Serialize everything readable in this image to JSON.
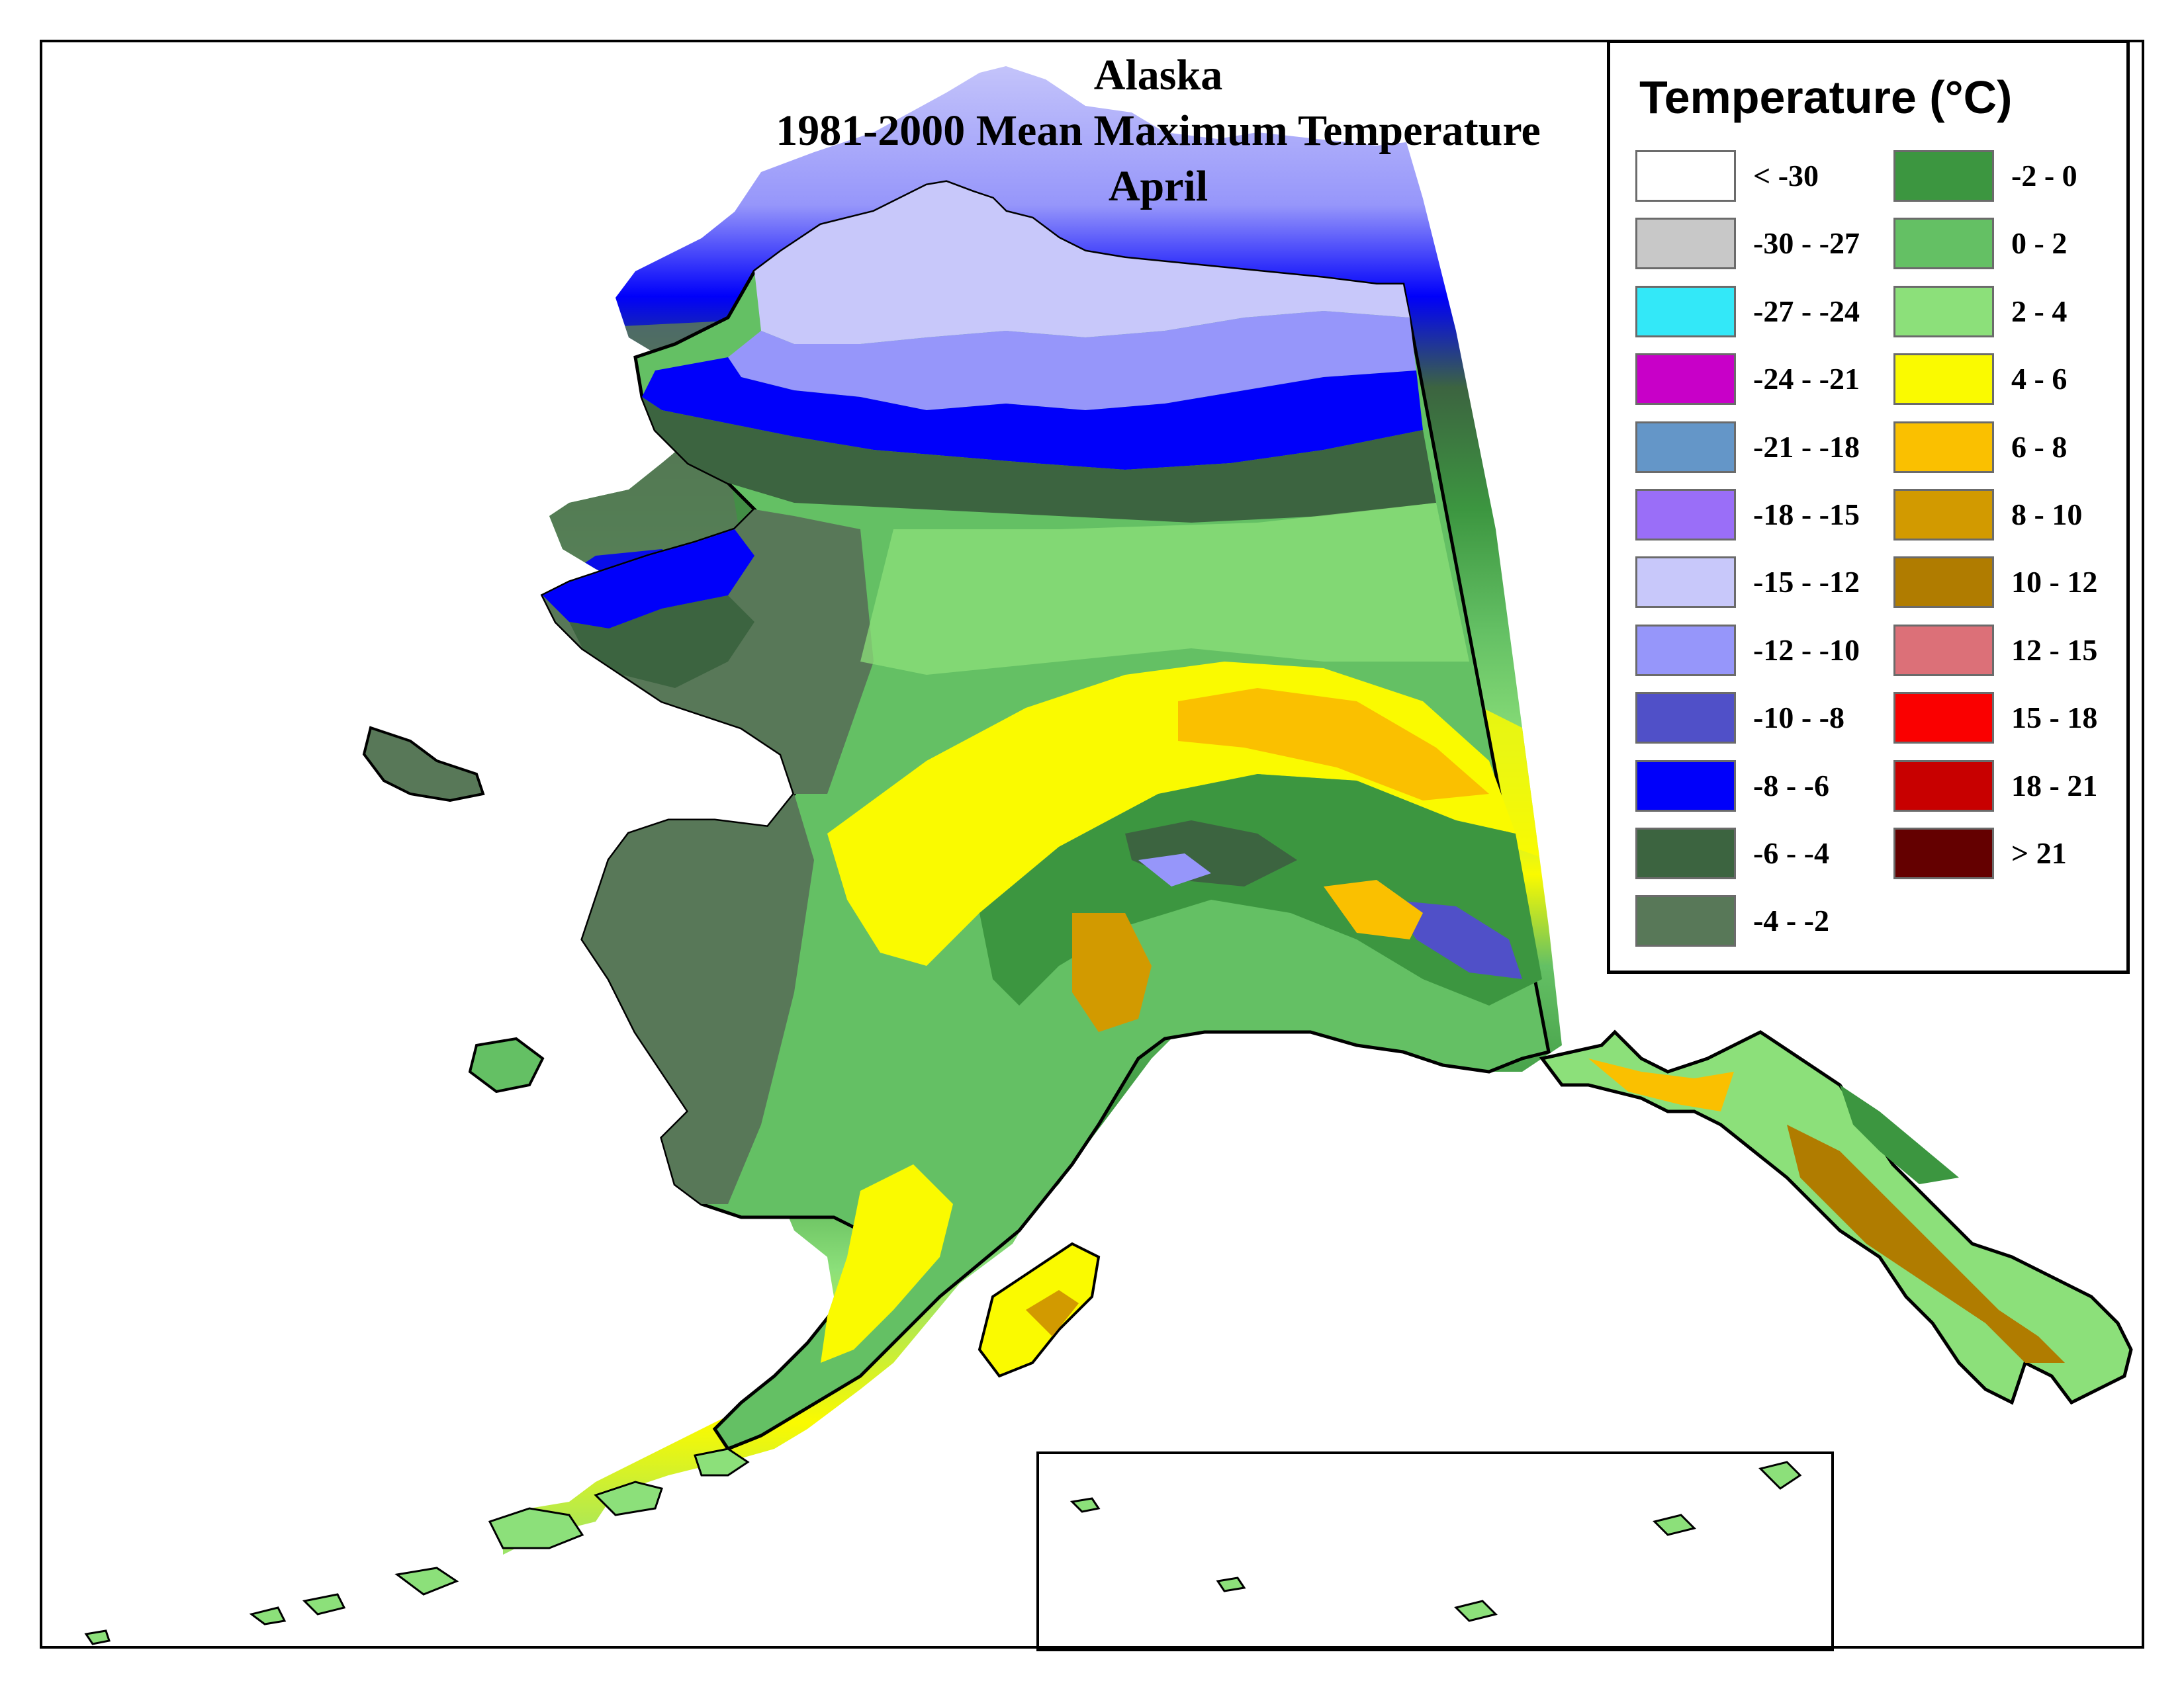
{
  "title": {
    "line1": "Alaska",
    "line2": "1981-2000 Mean Maximum Temperature",
    "line3": "April"
  },
  "legend": {
    "title": "Temperature (°C)",
    "items": [
      {
        "label": "< -30",
        "color": "#ffffff"
      },
      {
        "label": "-30 - -27",
        "color": "#c8c8c8"
      },
      {
        "label": "-27 - -24",
        "color": "#33e8f8"
      },
      {
        "label": "-24 - -21",
        "color": "#c800c8"
      },
      {
        "label": "-21 - -18",
        "color": "#6496c8"
      },
      {
        "label": "-18 - -15",
        "color": "#9a6ef8"
      },
      {
        "label": "-15 - -12",
        "color": "#c8c8fa"
      },
      {
        "label": "-12 - -10",
        "color": "#9696fa"
      },
      {
        "label": "-10 - -8",
        "color": "#5050c8"
      },
      {
        "label": "-8 - -6",
        "color": "#0000fa"
      },
      {
        "label": "-6 - -4",
        "color": "#3c6440"
      },
      {
        "label": "-4 - -2",
        "color": "#587858"
      },
      {
        "label": "-2 - 0",
        "color": "#3c9640"
      },
      {
        "label": "0 - 2",
        "color": "#64c064"
      },
      {
        "label": "2 - 4",
        "color": "#8ce07a"
      },
      {
        "label": "4 - 6",
        "color": "#fafa00"
      },
      {
        "label": "6 - 8",
        "color": "#fac000"
      },
      {
        "label": "8 - 10",
        "color": "#d29a00"
      },
      {
        "label": "10 - 12",
        "color": "#b07c00"
      },
      {
        "label": "12 - 15",
        "color": "#dc7078"
      },
      {
        "label": "15 - 18",
        "color": "#fa0000"
      },
      {
        "label": "18 - 21",
        "color": "#c80000"
      },
      {
        "label": "> 21",
        "color": "#640000"
      }
    ]
  }
}
